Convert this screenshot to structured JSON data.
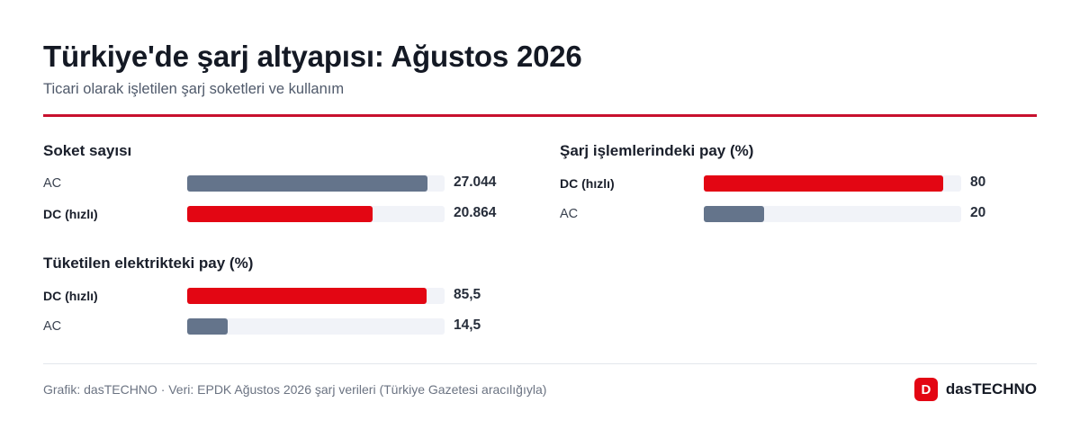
{
  "header": {
    "title": "Türkiye'de şarj altyapısı: Ağustos 2026",
    "subtitle": "Ticari olarak işletilen şarj soketleri ve kullanım"
  },
  "colors": {
    "accent": "#e30613",
    "secondary": "#64748b",
    "track": "#f1f3f8",
    "rule": "#c8102e"
  },
  "chart_data": [
    {
      "type": "bar",
      "orientation": "horizontal",
      "title": "Soket sayısı",
      "categories": [
        "AC",
        "DC (hızlı)"
      ],
      "values": [
        27044,
        20864
      ],
      "value_labels": [
        "27.044",
        "20.864"
      ],
      "highlight": [
        false,
        true
      ],
      "xlim": [
        0,
        29000
      ]
    },
    {
      "type": "bar",
      "orientation": "horizontal",
      "title": "Tüketilen elektrikteki pay (%)",
      "categories": [
        "DC (hızlı)",
        "AC"
      ],
      "values": [
        85.5,
        14.5
      ],
      "value_labels": [
        "85,5",
        "14,5"
      ],
      "highlight": [
        true,
        false
      ],
      "xlim": [
        0,
        92
      ]
    },
    {
      "type": "bar",
      "orientation": "horizontal",
      "title": "Şarj işlemlerindeki pay (%)",
      "categories": [
        "DC (hızlı)",
        "AC"
      ],
      "values": [
        80,
        20
      ],
      "value_labels": [
        "80",
        "20"
      ],
      "highlight": [
        true,
        false
      ],
      "xlim": [
        0,
        86
      ]
    }
  ],
  "footer": {
    "source": "Grafik: dasTECHNO · Veri: EPDK Ağustos 2026 şarj verileri (Türkiye Gazetesi aracılığıyla)",
    "brand_mark": "D",
    "brand_name": "dasTECHNO"
  }
}
